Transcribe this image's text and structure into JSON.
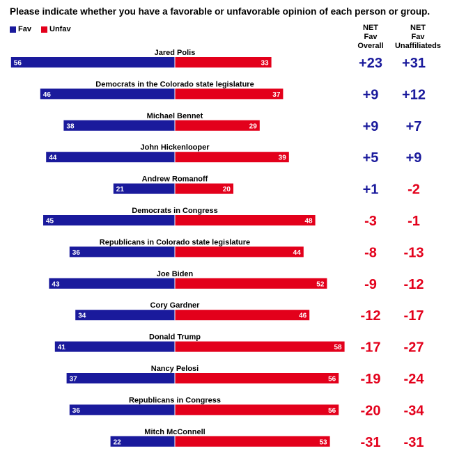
{
  "title": "Please indicate whether you have a favorable or unfavorable opinion of each person or group.",
  "colors": {
    "fav": "#1a1a9c",
    "unfav": "#e3001b"
  },
  "columns": {
    "overall": [
      "NET",
      "Fav",
      "Overall"
    ],
    "unaffiliated": [
      "NET",
      "Fav",
      "Unaffiliateds"
    ]
  },
  "chart_data": {
    "type": "bar",
    "orientation": "diverging-horizontal",
    "categories": [
      "Jared Polis",
      "Democrats in the Colorado state legislature",
      "Michael Bennet",
      "John Hickenlooper",
      "Andrew Romanoff",
      "Democrats in Congress",
      "Republicans in Colorado state legislature",
      "Joe Biden",
      "Cory Gardner",
      "Donald Trump",
      "Nancy Pelosi",
      "Republicans in Congress",
      "Mitch McConnell"
    ],
    "series": [
      {
        "name": "Fav",
        "values": [
          56,
          46,
          38,
          44,
          21,
          45,
          36,
          43,
          34,
          41,
          37,
          36,
          22
        ]
      },
      {
        "name": "Unfav",
        "values": [
          33,
          37,
          29,
          39,
          20,
          48,
          44,
          52,
          46,
          58,
          56,
          56,
          53
        ]
      }
    ],
    "net_overall": [
      "+23",
      "+9",
      "+9",
      "+5",
      "+1",
      "-3",
      "-8",
      "-9",
      "-12",
      "-17",
      "-19",
      "-20",
      "-31"
    ],
    "net_unaffiliated": [
      "+31",
      "+12",
      "+7",
      "+9",
      "-2",
      "-1",
      "-13",
      "-12",
      "-17",
      "-27",
      "-24",
      "-34",
      "-31"
    ],
    "legend_position": "top-left"
  }
}
